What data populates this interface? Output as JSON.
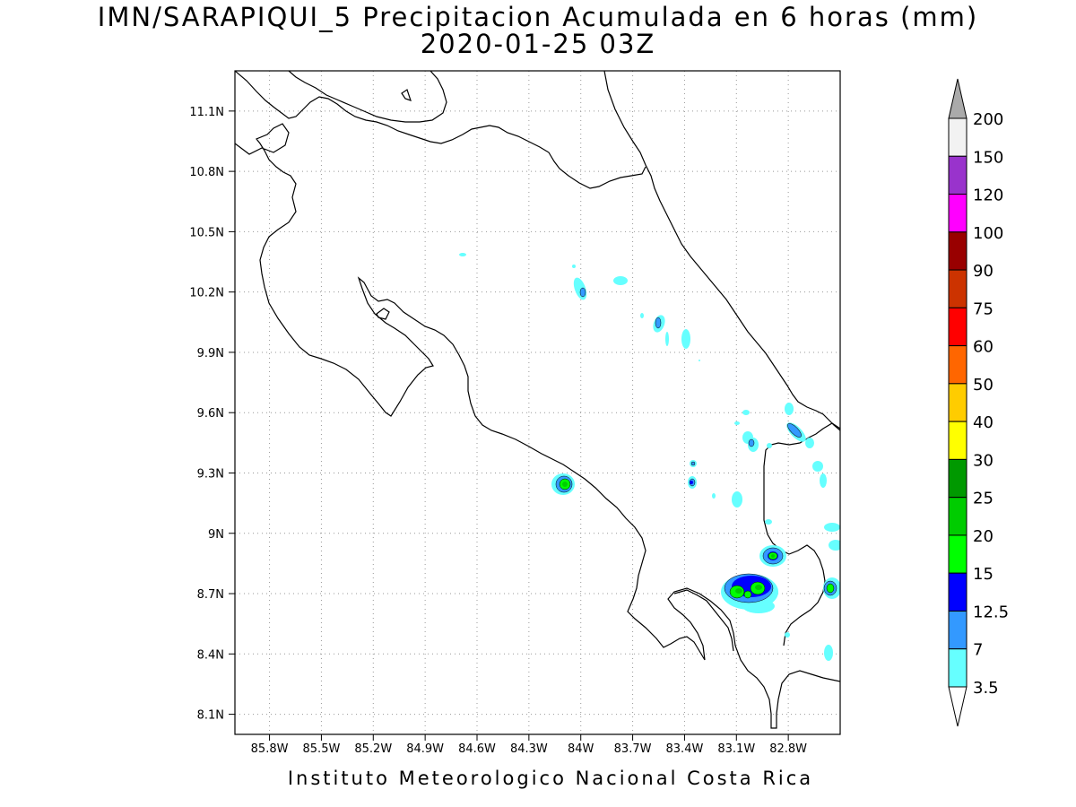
{
  "title": {
    "line1": "IMN/SARAPIQUI_5 Precipitacion Acumulada en 6 horas (mm)",
    "line2": "2020-01-25 03Z"
  },
  "footer": "Instituto Meteorologico Nacional Costa Rica",
  "map": {
    "lon_range": [
      -86.0,
      -82.5
    ],
    "lat_range": [
      8.0,
      11.3
    ],
    "lat_ticks": [
      "11.1N",
      "10.8N",
      "10.5N",
      "10.2N",
      "9.9N",
      "9.6N",
      "9.3N",
      "9N",
      "8.7N",
      "8.4N",
      "8.1N"
    ],
    "lon_ticks": [
      "85.8W",
      "85.5W",
      "85.2W",
      "84.9W",
      "84.6W",
      "84.3W",
      "84W",
      "83.7W",
      "83.4W",
      "83.1W",
      "82.8W"
    ],
    "grid": true,
    "grid_style": "dotted"
  },
  "colorbar": {
    "labels": [
      "200",
      "150",
      "120",
      "100",
      "90",
      "75",
      "60",
      "50",
      "40",
      "30",
      "25",
      "20",
      "15",
      "12.5",
      "7",
      "3.5"
    ],
    "colors": [
      "#f2f2f2",
      "#9933cc",
      "#ff00ff",
      "#990000",
      "#cc3300",
      "#ff0000",
      "#ff6600",
      "#ffcc00",
      "#ffff00",
      "#009900",
      "#00cc00",
      "#00ff00",
      "#0000ff",
      "#3399ff",
      "#66ffff"
    ],
    "top_arrow_color": "#aaaaaa",
    "bottom_arrow_color": "#ffffff",
    "units": "mm"
  },
  "precip_colors": {
    "c3_5": "#66ffff",
    "c7": "#3399ff",
    "c12_5": "#0000ff",
    "c15": "#00ff00",
    "c20": "#00cc00",
    "c25": "#009900"
  }
}
